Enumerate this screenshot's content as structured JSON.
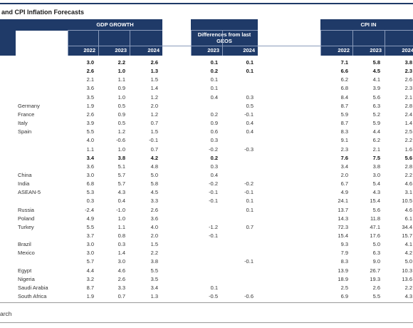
{
  "header": {
    "title": "and CPI Inflation Forecasts"
  },
  "table": {
    "groups": [
      {
        "label": "GDP GROWTH",
        "columns": [
          "2022",
          "2023",
          "2024"
        ]
      },
      {
        "label": "Differences from last GEOS",
        "columns": [
          "2023",
          "2024"
        ]
      },
      {
        "label": "CPI IN",
        "columns": [
          "2022",
          "2023",
          "2024"
        ]
      }
    ],
    "rows": [
      {
        "bold": true,
        "cells": [
          "3.0",
          "2.2",
          "2.6",
          "0.1",
          "0.1",
          "7.1",
          "5.8",
          "3.8"
        ]
      },
      {
        "bold": true,
        "cells": [
          "2.6",
          "1.0",
          "1.3",
          "0.2",
          "0.1",
          "6.6",
          "4.5",
          "2.3"
        ]
      },
      {
        "bold": false,
        "cells": [
          "2.1",
          "1.1",
          "1.5",
          "0.1",
          null,
          "6.2",
          "4.1",
          "2.6"
        ]
      },
      {
        "bold": false,
        "cells": [
          "3.6",
          "0.9",
          "1.4",
          "0.1",
          null,
          "6.8",
          "3.9",
          "2.3"
        ]
      },
      {
        "bold": false,
        "cells": [
          "3.5",
          "1.0",
          "1.2",
          "0.4",
          "0.3",
          "8.4",
          "5.6",
          "2.1"
        ]
      },
      {
        "label": "Germany",
        "bold": false,
        "cells": [
          "1.9",
          "0.5",
          "2.0",
          null,
          "0.5",
          "8.7",
          "6.3",
          "2.8"
        ]
      },
      {
        "label": "France",
        "bold": false,
        "cells": [
          "2.6",
          "0.9",
          "1.2",
          "0.2",
          "-0.1",
          "5.9",
          "5.2",
          "2.4"
        ]
      },
      {
        "label": "Italy",
        "bold": false,
        "cells": [
          "3.9",
          "0.5",
          "0.7",
          "0.9",
          "0.4",
          "8.7",
          "5.9",
          "1.4"
        ]
      },
      {
        "label": "Spain",
        "bold": false,
        "cells": [
          "5.5",
          "1.2",
          "1.5",
          "0.6",
          "0.4",
          "8.3",
          "4.4",
          "2.5"
        ]
      },
      {
        "bold": false,
        "cells": [
          "4.0",
          "-0.6",
          "-0.1",
          "0.3",
          null,
          "9.1",
          "6.2",
          "2.2"
        ]
      },
      {
        "bold": false,
        "cells": [
          "1.1",
          "1.0",
          "0.7",
          "-0.2",
          "-0.3",
          "2.3",
          "2.1",
          "1.6"
        ]
      },
      {
        "bold": true,
        "cells": [
          "3.4",
          "3.8",
          "4.2",
          "0.2",
          null,
          "7.6",
          "7.5",
          "5.6"
        ]
      },
      {
        "bold": false,
        "cells": [
          "3.6",
          "5.1",
          "4.8",
          "0.3",
          null,
          "3.4",
          "3.8",
          "2.8"
        ]
      },
      {
        "label": "China",
        "bold": false,
        "cells": [
          "3.0",
          "5.7",
          "5.0",
          "0.4",
          null,
          "2.0",
          "3.0",
          "2.2"
        ]
      },
      {
        "label": "India",
        "bold": false,
        "cells": [
          "6.8",
          "5.7",
          "5.8",
          "-0.2",
          "-0.2",
          "6.7",
          "5.4",
          "4.6"
        ]
      },
      {
        "label": "ASEAN-5",
        "bold": false,
        "cells": [
          "5.3",
          "4.3",
          "4.5",
          "-0.1",
          "-0.1",
          "4.9",
          "4.3",
          "3.1"
        ]
      },
      {
        "bold": false,
        "cells": [
          "0.3",
          "0.4",
          "3.3",
          "-0.1",
          "0.1",
          "24.1",
          "15.4",
          "10.5"
        ]
      },
      {
        "label": "Russia",
        "bold": false,
        "cells": [
          "-2.4",
          "-1.0",
          "2.6",
          null,
          "0.1",
          "13.7",
          "5.6",
          "4.6"
        ]
      },
      {
        "label": "Poland",
        "bold": false,
        "cells": [
          "4.9",
          "1.0",
          "3.6",
          null,
          null,
          "14.3",
          "11.8",
          "6.1"
        ]
      },
      {
        "label": "Turkey",
        "bold": false,
        "cells": [
          "5.5",
          "1.1",
          "4.0",
          "-1.2",
          "0.7",
          "72.3",
          "47.1",
          "34.4"
        ]
      },
      {
        "bold": false,
        "cells": [
          "3.7",
          "0.8",
          "2.0",
          "-0.1",
          null,
          "15.4",
          "17.6",
          "15.7"
        ]
      },
      {
        "label": "Brazil",
        "bold": false,
        "cells": [
          "3.0",
          "0.3",
          "1.5",
          null,
          null,
          "9.3",
          "5.0",
          "4.1"
        ]
      },
      {
        "label": "Mexico",
        "bold": false,
        "cells": [
          "3.0",
          "1.4",
          "2.2",
          null,
          null,
          "7.9",
          "6.3",
          "4.2"
        ]
      },
      {
        "bold": false,
        "cells": [
          "5.7",
          "3.0",
          "3.8",
          null,
          "-0.1",
          "8.3",
          "9.0",
          "5.0"
        ]
      },
      {
        "label": "Egypt",
        "bold": false,
        "cells": [
          "4.4",
          "4.6",
          "5.5",
          null,
          null,
          "13.9",
          "26.7",
          "10.3"
        ]
      },
      {
        "label": "Nigeria",
        "bold": false,
        "cells": [
          "3.2",
          "2.6",
          "3.5",
          null,
          null,
          "18.9",
          "19.3",
          "13.6"
        ]
      },
      {
        "label": "Saudi Arabia",
        "bold": false,
        "cells": [
          "8.7",
          "3.3",
          "3.4",
          "0.1",
          null,
          "2.5",
          "2.6",
          "2.2"
        ]
      },
      {
        "label": "South Africa",
        "bold": false,
        "cells": [
          "1.9",
          "0.7",
          "1.3",
          "-0.5",
          "-0.6",
          "6.9",
          "5.5",
          "4.3"
        ]
      }
    ]
  },
  "footer": {
    "source": "arch"
  }
}
